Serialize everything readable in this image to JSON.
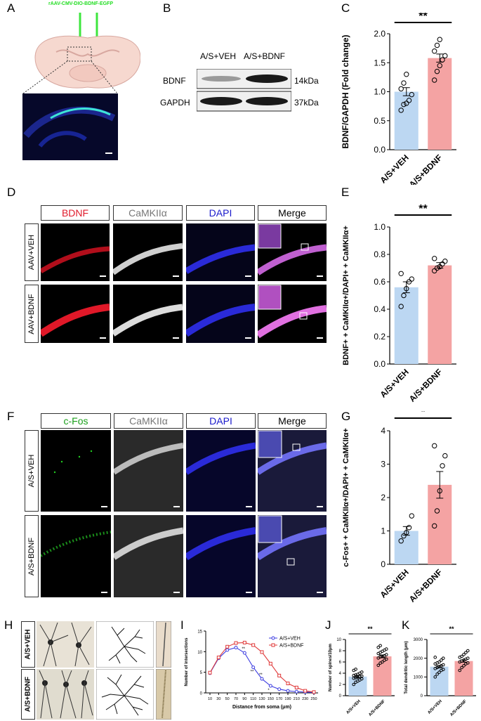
{
  "panels": {
    "A": {
      "letter": "A",
      "virus": "rAAV-CMV-DIO-BDNF-EGFP"
    },
    "B": {
      "letter": "B",
      "cols": [
        "A/S+VEH",
        "A/S+BDNF"
      ],
      "rows": [
        {
          "name": "BDNF",
          "kda": "14kDa"
        },
        {
          "name": "GAPDH",
          "kda": "37kDa"
        }
      ]
    },
    "C": {
      "letter": "C"
    },
    "D": {
      "letter": "D",
      "headers": [
        "BDNF",
        "CaMKIIα",
        "DAPI",
        "Merge"
      ],
      "header_colors": [
        "#e01a2a",
        "#777777",
        "#1a1acc",
        "#000000"
      ],
      "rows": [
        "AAV+VEH",
        "AAV+BDNF"
      ]
    },
    "E": {
      "letter": "E"
    },
    "F": {
      "letter": "F",
      "headers": [
        "c-Fos",
        "CaMKIIα",
        "DAPI",
        "Merge"
      ],
      "header_colors": [
        "#1aa01a",
        "#777777",
        "#1a1acc",
        "#000000"
      ],
      "rows": [
        "A/S+VEH",
        "A/S+BDNF"
      ]
    },
    "G": {
      "letter": "G"
    },
    "H": {
      "letter": "H",
      "rows": [
        "A/S+VEH",
        "A/S+BDNF"
      ]
    },
    "I": {
      "letter": "I"
    },
    "J": {
      "letter": "J"
    },
    "K": {
      "letter": "K"
    }
  },
  "colors": {
    "veh": "#bcd7f2",
    "bdnf": "#f4a3a3",
    "veh_line": "#3a3ae0",
    "bdnf_line": "#e03a3a"
  },
  "chart_data": [
    {
      "id": "C",
      "type": "bar",
      "categories": [
        "A/S+VEH",
        "A/S+BDNF"
      ],
      "values": [
        1.0,
        1.58
      ],
      "errors": [
        0.07,
        0.07
      ],
      "points": [
        [
          0.68,
          0.78,
          0.8,
          0.85,
          0.95,
          1.05,
          1.15,
          1.3
        ],
        [
          1.2,
          1.35,
          1.45,
          1.55,
          1.62,
          1.7,
          1.8,
          1.9
        ]
      ],
      "ylabel": "BDNF/GAPDH (Fold change)",
      "ylim": [
        0,
        2.0
      ],
      "yticks": [
        "0.0",
        "0.5",
        "1.0",
        "1.5",
        "2.0"
      ],
      "significance": "**"
    },
    {
      "id": "E",
      "type": "bar",
      "categories": [
        "A/S+VEH",
        "A/S+BDNF"
      ],
      "values": [
        0.56,
        0.72
      ],
      "errors": [
        0.04,
        0.02
      ],
      "points": [
        [
          0.42,
          0.5,
          0.55,
          0.6,
          0.62,
          0.66
        ],
        [
          0.68,
          0.7,
          0.71,
          0.73,
          0.75,
          0.77
        ]
      ],
      "ylabel": "BDNF+ + CaMKIIα+/DAPI+ + CaMKIIα+",
      "ylim": [
        0,
        1.0
      ],
      "yticks": [
        "0.0",
        "0.2",
        "0.4",
        "0.6",
        "0.8",
        "1.0"
      ],
      "significance": "**"
    },
    {
      "id": "G",
      "type": "bar",
      "categories": [
        "A/S+VEH",
        "A/S+BDNF"
      ],
      "values": [
        1.0,
        2.38
      ],
      "errors": [
        0.13,
        0.4
      ],
      "points": [
        [
          0.7,
          0.85,
          0.95,
          1.1,
          1.45
        ],
        [
          1.15,
          1.6,
          2.2,
          2.95,
          3.25,
          3.55
        ]
      ],
      "ylabel": "c-Fos+ + CaMKIIα+/DAPI+ + CaMKIIα+",
      "ylim": [
        0,
        4
      ],
      "yticks": [
        "0",
        "1",
        "2",
        "3",
        "4"
      ],
      "significance": "*"
    },
    {
      "id": "I",
      "type": "line",
      "x": [
        10,
        30,
        50,
        70,
        90,
        110,
        130,
        150,
        170,
        190,
        210,
        230,
        250
      ],
      "series": [
        {
          "name": "A/S+VEH",
          "values": [
            4.8,
            8.4,
            10.4,
            11.0,
            9.7,
            6.2,
            3.4,
            1.7,
            0.9,
            0.5,
            0.3,
            0.2,
            0.1
          ]
        },
        {
          "name": "A/S+BDNF",
          "values": [
            4.9,
            8.6,
            11.2,
            12.1,
            12.2,
            11.6,
            9.9,
            7.1,
            4.2,
            2.3,
            1.3,
            0.5,
            0.2
          ]
        }
      ],
      "xlabel": "Distance from soma (μm)",
      "ylabel": "Number of intersections",
      "ylim": [
        0,
        15
      ],
      "yticks": [
        "0",
        "5",
        "10",
        "15"
      ],
      "xticks": [
        "10",
        "30",
        "50",
        "70",
        "90",
        "110",
        "130",
        "150",
        "170",
        "190",
        "210",
        "230",
        "250"
      ],
      "annotations": [
        "**",
        "**",
        "**",
        "*"
      ],
      "legend": "top-right"
    },
    {
      "id": "J",
      "type": "bar",
      "categories": [
        "A/S+VEH",
        "A/S+BDNF"
      ],
      "values": [
        3.4,
        7.0
      ],
      "errors": [
        0.2,
        0.25
      ],
      "points": [
        [
          2.0,
          2.4,
          2.6,
          2.8,
          3.0,
          3.1,
          3.2,
          3.3,
          3.4,
          3.5,
          3.6,
          3.7,
          3.8,
          4.0,
          4.2,
          4.5,
          4.7
        ],
        [
          5.4,
          5.8,
          6.0,
          6.3,
          6.5,
          6.7,
          6.9,
          7.0,
          7.1,
          7.3,
          7.5,
          7.7,
          7.9,
          8.1,
          8.3,
          8.6,
          8.9
        ]
      ],
      "ylabel": "Number of spines/10μm",
      "ylim": [
        0,
        10
      ],
      "yticks": [
        "0",
        "2",
        "4",
        "6",
        "8",
        "10"
      ],
      "significance": "**"
    },
    {
      "id": "K",
      "type": "bar",
      "categories": [
        "A/S+VEH",
        "A/S+BDNF"
      ],
      "values": [
        1550,
        1850
      ],
      "errors": [
        60,
        60
      ],
      "points": [
        [
          1000,
          1150,
          1250,
          1350,
          1400,
          1450,
          1500,
          1550,
          1600,
          1650,
          1700,
          1750,
          1800,
          1900,
          2000,
          2050
        ],
        [
          1350,
          1500,
          1600,
          1700,
          1750,
          1800,
          1850,
          1900,
          1950,
          2000,
          2050,
          2100,
          2200,
          2300,
          2400
        ]
      ],
      "ylabel": "Total dendritic length (μm)",
      "ylim": [
        0,
        3000
      ],
      "yticks": [
        "0",
        "1000",
        "2000",
        "3000"
      ],
      "significance": "**"
    }
  ]
}
